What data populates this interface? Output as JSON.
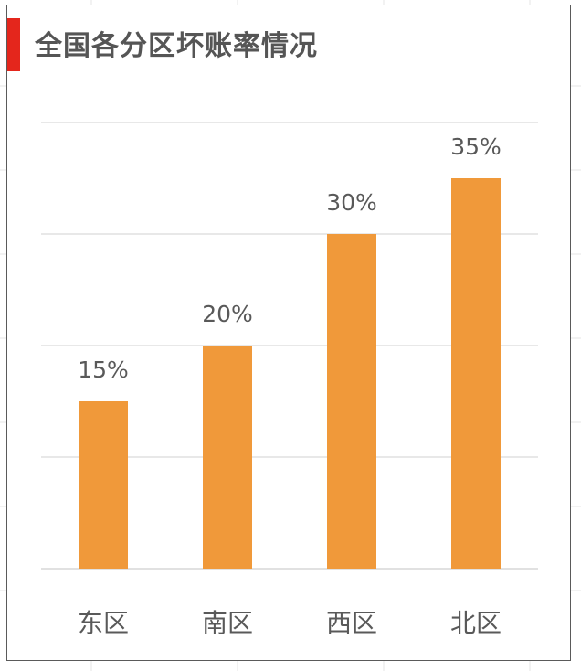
{
  "chart_data": {
    "type": "bar",
    "title": "全国各分区坏账率情况",
    "categories": [
      "东区",
      "南区",
      "西区",
      "北区"
    ],
    "values": [
      15,
      20,
      30,
      35
    ],
    "value_labels": [
      "15%",
      "20%",
      "30%",
      "35%"
    ],
    "ylim": [
      0,
      40
    ],
    "yticks": [
      0,
      10,
      20,
      30,
      40
    ],
    "grid": true,
    "legend": "none",
    "bar_color": "#f0993a",
    "title_accent_color": "#e4261c"
  }
}
